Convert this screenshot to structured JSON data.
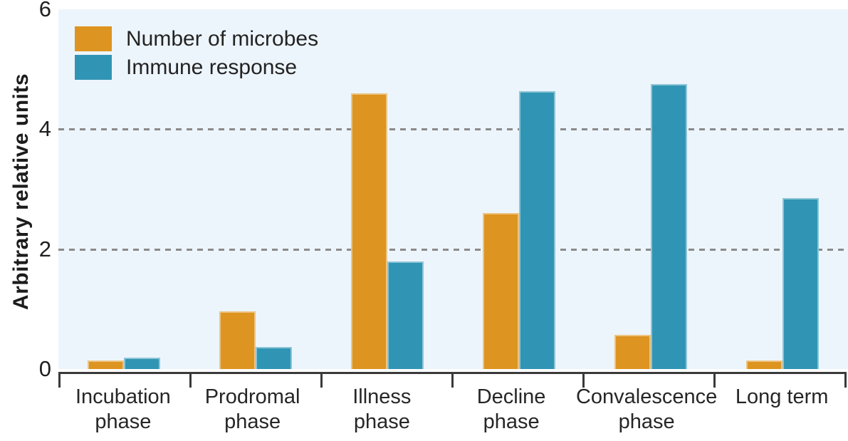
{
  "chart_data": {
    "type": "bar",
    "title": "",
    "xlabel": "",
    "ylabel": "Arbitrary relative units",
    "ylim": [
      0,
      6
    ],
    "yticks": [
      0,
      2,
      4,
      6
    ],
    "gridlines": [
      2,
      4
    ],
    "grid_style": "dashed",
    "legend_position": "top-left-inside",
    "plot_background": "#edf5fc",
    "axis_color": "#3a3a3a",
    "categories": [
      "Incubation phase",
      "Prodromal phase",
      "Illness phase",
      "Decline phase",
      "Convalescence phase",
      "Long term"
    ],
    "category_lines": [
      [
        "Incubation",
        "phase"
      ],
      [
        "Prodromal",
        "phase"
      ],
      [
        "Illness",
        "phase"
      ],
      [
        "Decline",
        "phase"
      ],
      [
        "Convalescence",
        "phase"
      ],
      [
        "Long term"
      ]
    ],
    "series": [
      {
        "name": "Number of microbes",
        "color": "#dd9420",
        "values": [
          0.14,
          0.96,
          4.6,
          2.6,
          0.57,
          0.14
        ]
      },
      {
        "name": "Immune response",
        "color": "#3095b4",
        "values": [
          0.19,
          0.37,
          1.8,
          4.63,
          4.75,
          2.85
        ]
      }
    ]
  }
}
